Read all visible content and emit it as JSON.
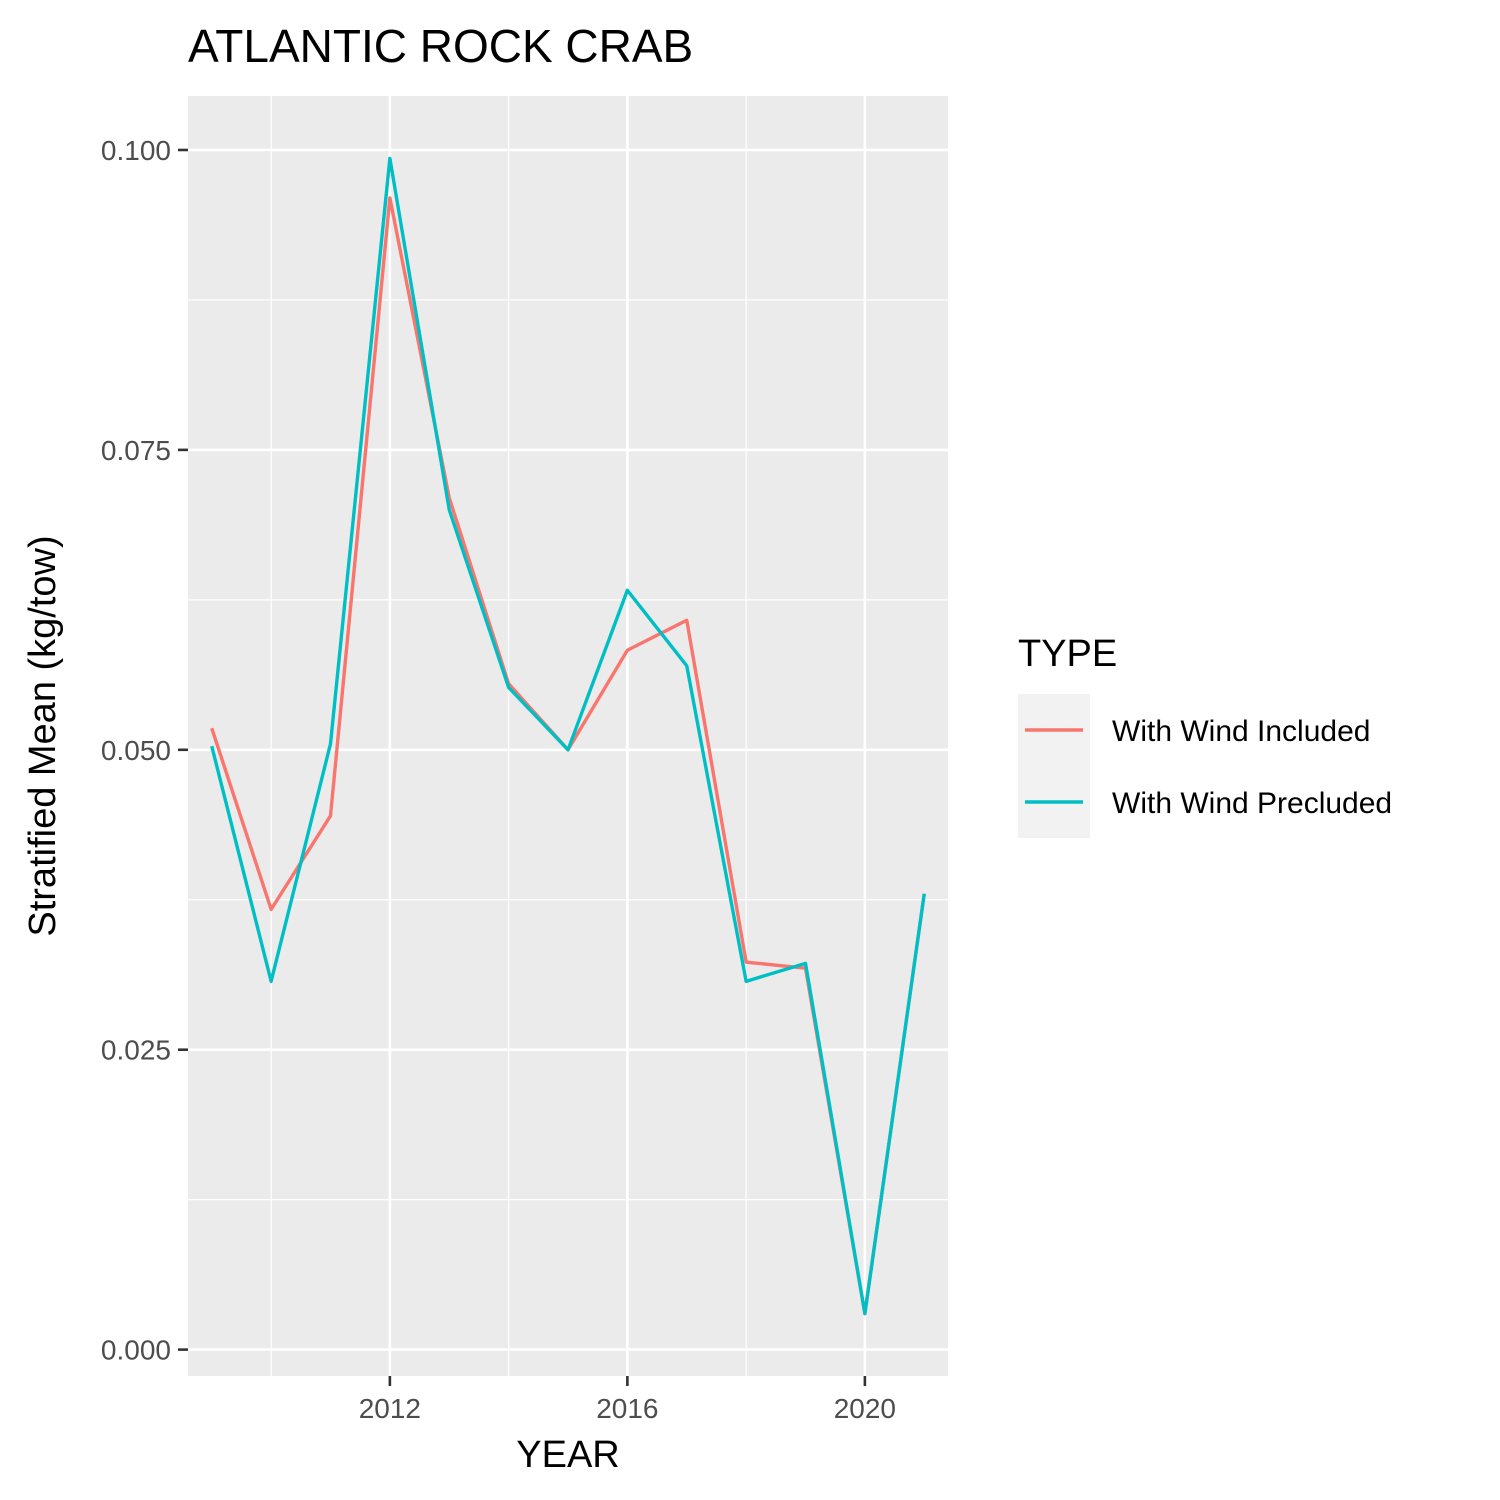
{
  "chart_data": {
    "type": "line",
    "title": "ATLANTIC ROCK CRAB",
    "xlabel": "YEAR",
    "ylabel": "Stratified Mean (kg/tow)",
    "xlim": [
      2008.6,
      2021.4
    ],
    "ylim": [
      -0.0022,
      0.1045
    ],
    "x_ticks": [
      2012,
      2016,
      2020
    ],
    "x_tick_labels": [
      "2012",
      "2016",
      "2020"
    ],
    "x_minor_ticks": [
      2010,
      2014,
      2018
    ],
    "y_ticks": [
      0.0,
      0.025,
      0.05,
      0.075,
      0.1
    ],
    "y_tick_labels": [
      "0.000",
      "0.025",
      "0.050",
      "0.075",
      "0.100"
    ],
    "y_minor_ticks": [
      0.0125,
      0.0375,
      0.0625,
      0.0875
    ],
    "grid": true,
    "legend": {
      "title": "TYPE",
      "placement": "right"
    },
    "x": [
      2009,
      2010,
      2011,
      2012,
      2013,
      2014,
      2015,
      2016,
      2017,
      2018,
      2019,
      2020,
      2021
    ],
    "series": [
      {
        "name": "With Wind Included",
        "color": "#F8766D",
        "values": [
          0.0518,
          0.0367,
          0.0445,
          0.096,
          0.071,
          0.0555,
          0.05,
          0.0583,
          0.0608,
          0.0323,
          0.0318,
          0.003,
          0.038
        ]
      },
      {
        "name": "With Wind Precluded",
        "color": "#00BFC4",
        "values": [
          0.0503,
          0.0307,
          0.0505,
          0.0993,
          0.07,
          0.0552,
          0.05,
          0.0633,
          0.057,
          0.0307,
          0.0322,
          0.003,
          0.038
        ]
      }
    ]
  },
  "colors": {
    "panel_background": "#EBEBEB",
    "grid_major": "#FFFFFF",
    "legend_key_background": "#F2F2F2"
  }
}
